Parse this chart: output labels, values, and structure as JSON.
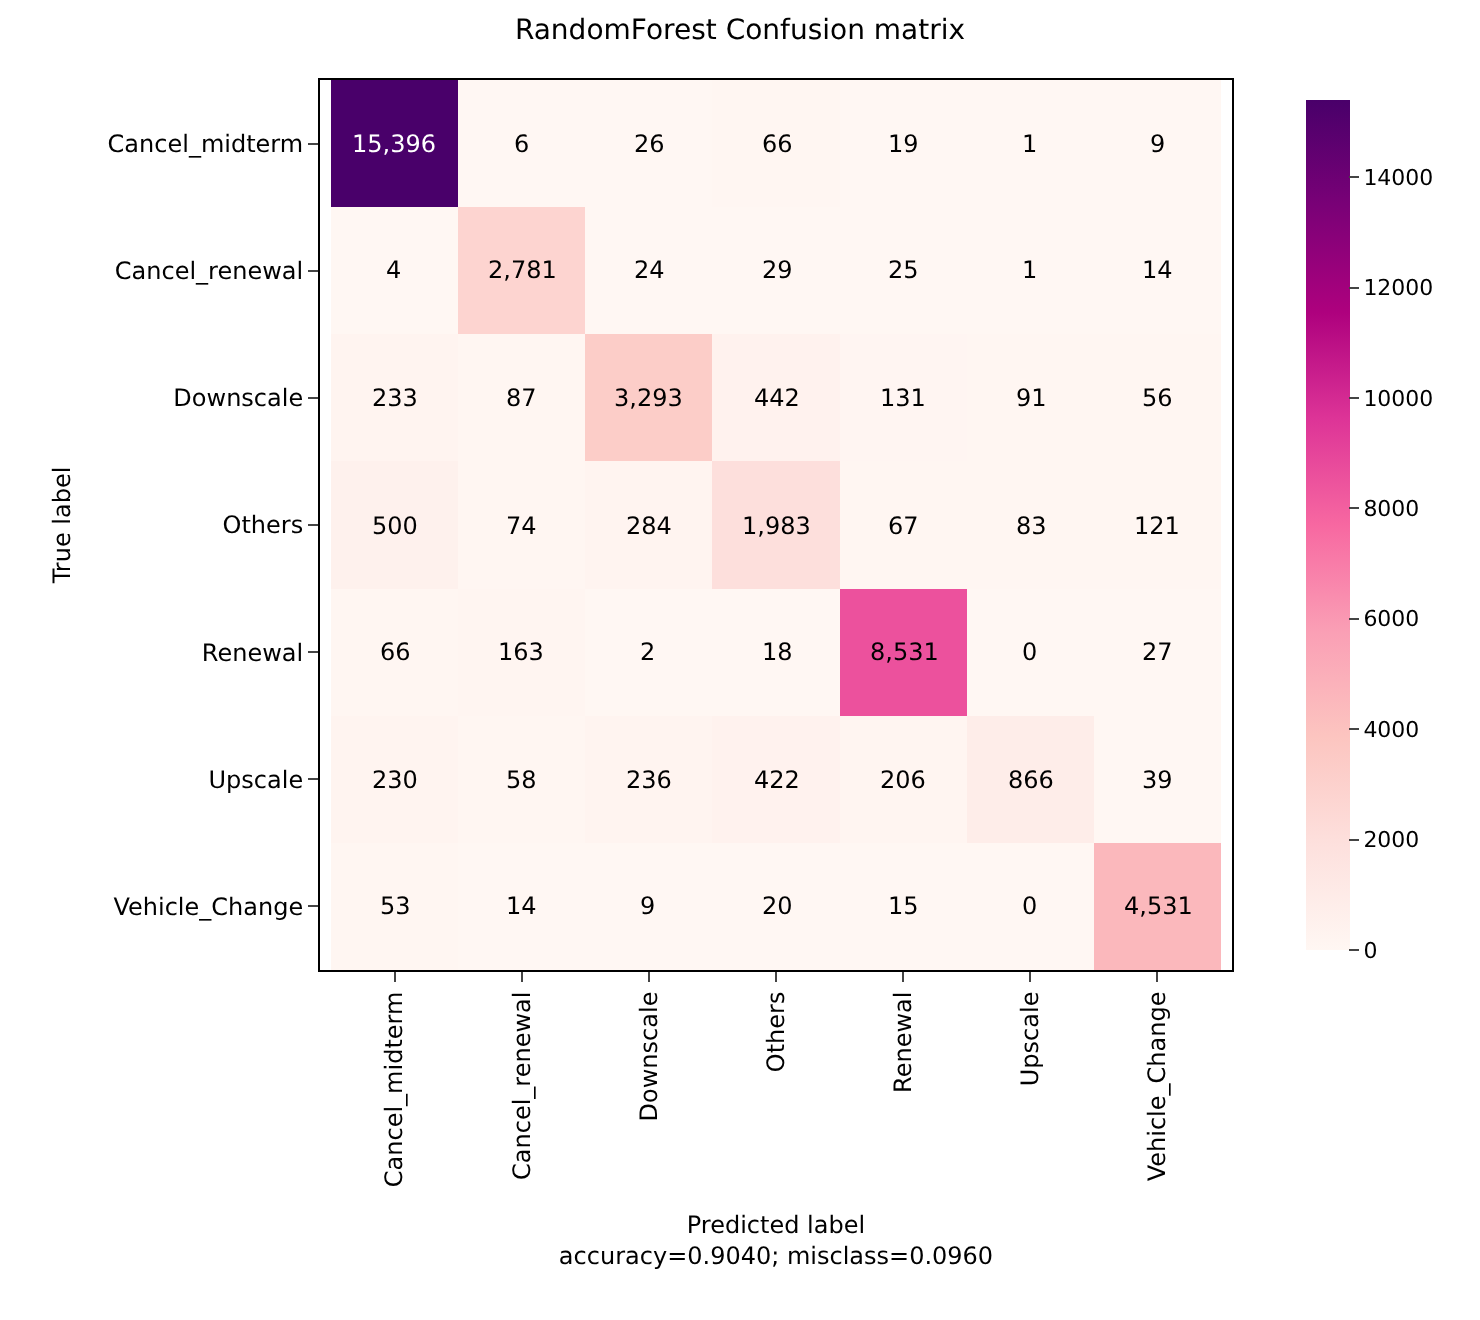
{
  "chart_data": {
    "type": "heatmap",
    "title": "RandomForest Confusion matrix",
    "xlabel": "Predicted label\naccuracy=0.9040; misclass=0.0960",
    "ylabel": "True label",
    "categories": [
      "Cancel_midterm",
      "Cancel_renewal",
      "Downscale",
      "Others",
      "Renewal",
      "Upscale",
      "Vehicle_Change"
    ],
    "y_categories": [
      "Cancel_midterm",
      "Cancel_renewal",
      "Downscale",
      "Others",
      "Renewal",
      "Upscale",
      "Vehicle_Change"
    ],
    "cells": [
      [
        15396,
        6,
        26,
        66,
        19,
        1,
        9
      ],
      [
        4,
        2781,
        24,
        29,
        25,
        1,
        14
      ],
      [
        233,
        87,
        3293,
        442,
        131,
        91,
        56
      ],
      [
        500,
        74,
        284,
        1983,
        67,
        83,
        121
      ],
      [
        66,
        163,
        2,
        18,
        8531,
        0,
        27
      ],
      [
        230,
        58,
        236,
        422,
        206,
        866,
        39
      ],
      [
        53,
        14,
        9,
        20,
        15,
        0,
        4531
      ]
    ],
    "cell_labels": [
      [
        "15,396",
        "6",
        "26",
        "66",
        "19",
        "1",
        "9"
      ],
      [
        "4",
        "2,781",
        "24",
        "29",
        "25",
        "1",
        "14"
      ],
      [
        "233",
        "87",
        "3,293",
        "442",
        "131",
        "91",
        "56"
      ],
      [
        "500",
        "74",
        "284",
        "1,983",
        "67",
        "83",
        "121"
      ],
      [
        "66",
        "163",
        "2",
        "18",
        "8,531",
        "0",
        "27"
      ],
      [
        "230",
        "58",
        "236",
        "422",
        "206",
        "866",
        "39"
      ],
      [
        "53",
        "14",
        "9",
        "20",
        "15",
        "0",
        "4,531"
      ]
    ],
    "clim": [
      0,
      15396
    ],
    "cticks": [
      0,
      2000,
      4000,
      6000,
      8000,
      10000,
      12000,
      14000
    ]
  }
}
